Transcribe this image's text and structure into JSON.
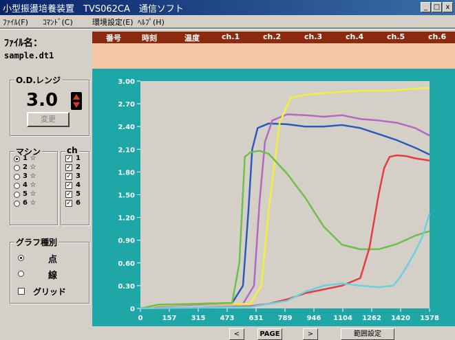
{
  "window": {
    "title": "小型振盪培養装置　TVS062CA　通信ソフト",
    "controls": {
      "minimize": "_",
      "maximize": "□",
      "close": "x"
    }
  },
  "menu": [
    "ﾌｧｲﾙ(F)",
    "ｺﾏﾝﾄﾞ(C)",
    "環境設定(E)",
    "ﾍﾙﾌﾟ(H)"
  ],
  "file": {
    "label": "ﾌｧｲﾙ名：",
    "name": "sample.dt1"
  },
  "header": [
    "番号",
    "時刻",
    "温度",
    "ch.1",
    "ch.2",
    "ch.3",
    "ch.4",
    "ch.5",
    "ch.6"
  ],
  "od_range": {
    "label": "O.D.レンジ",
    "value": "3.0",
    "change_button": "変更"
  },
  "machine": {
    "label": "マシン",
    "items": [
      "1 ☆",
      "2 ☆",
      "3 ☆",
      "4 ☆",
      "5 ☆",
      "6 ☆"
    ],
    "selected": 0
  },
  "channels": {
    "label": "ch",
    "items": [
      "1",
      "2",
      "3",
      "4",
      "5",
      "6"
    ]
  },
  "graph_type": {
    "label": "グラフ種別",
    "options": [
      "点",
      "線"
    ],
    "selected": 0,
    "grid_label": "グリッド"
  },
  "nav": {
    "prev": "<",
    "page": "PAGE",
    "next": ">",
    "settings": "範囲設定"
  },
  "chart_data": {
    "type": "line",
    "xlim": [
      0,
      1578
    ],
    "ylim": [
      0,
      3.0
    ],
    "xticks": [
      "0",
      "157",
      "315",
      "473",
      "631",
      "789",
      "946",
      "1104",
      "1262",
      "1420",
      "1578"
    ],
    "yticks": [
      "3.00",
      "2.70",
      "2.40",
      "2.10",
      "1.80",
      "1.50",
      "1.20",
      "0.90",
      "0.60",
      "0.30",
      "0"
    ],
    "grid": false,
    "background": "#d4d0c8",
    "frame_color": "#1fa6a6",
    "series": [
      {
        "color": "#2a5ab8",
        "x": [
          0,
          100,
          300,
          500,
          560,
          590,
          610,
          640,
          700,
          800,
          900,
          1000,
          1100,
          1200,
          1300,
          1400,
          1500,
          1578
        ],
        "y": [
          0,
          0.04,
          0.06,
          0.07,
          0.3,
          1.3,
          2.1,
          2.38,
          2.44,
          2.43,
          2.4,
          2.4,
          2.42,
          2.38,
          2.3,
          2.22,
          2.12,
          2.03
        ]
      },
      {
        "color": "#b268c4",
        "x": [
          0,
          100,
          300,
          560,
          620,
          650,
          680,
          720,
          800,
          900,
          1000,
          1100,
          1200,
          1300,
          1400,
          1500,
          1578
        ],
        "y": [
          0,
          0.03,
          0.05,
          0.06,
          0.3,
          1.4,
          2.2,
          2.48,
          2.56,
          2.55,
          2.53,
          2.55,
          2.5,
          2.48,
          2.45,
          2.38,
          2.28
        ]
      },
      {
        "color": "#f2f03a",
        "x": [
          0,
          100,
          300,
          600,
          660,
          700,
          760,
          820,
          900,
          1000,
          1100,
          1200,
          1300,
          1400,
          1500,
          1578
        ],
        "y": [
          0,
          0.04,
          0.06,
          0.06,
          0.3,
          1.3,
          2.45,
          2.78,
          2.82,
          2.84,
          2.86,
          2.87,
          2.87,
          2.88,
          2.9,
          2.91
        ]
      },
      {
        "color": "#6cc04a",
        "x": [
          0,
          100,
          300,
          500,
          540,
          570,
          600,
          650,
          700,
          800,
          900,
          1000,
          1100,
          1200,
          1300,
          1400,
          1500,
          1578
        ],
        "y": [
          0,
          0.05,
          0.06,
          0.07,
          0.6,
          2.0,
          2.06,
          2.08,
          2.04,
          1.78,
          1.46,
          1.08,
          0.84,
          0.78,
          0.78,
          0.85,
          0.96,
          1.02
        ]
      },
      {
        "color": "#e83a3a",
        "x": [
          0,
          300,
          600,
          700,
          800,
          900,
          1000,
          1100,
          1200,
          1250,
          1300,
          1330,
          1360,
          1400,
          1450,
          1500,
          1578
        ],
        "y": [
          0,
          0.01,
          0.03,
          0.06,
          0.12,
          0.2,
          0.25,
          0.3,
          0.4,
          0.8,
          1.5,
          1.85,
          2.0,
          2.02,
          2.01,
          1.98,
          1.95
        ]
      },
      {
        "color": "#6ad0e0",
        "x": [
          0,
          300,
          600,
          800,
          900,
          1000,
          1100,
          1200,
          1300,
          1380,
          1420,
          1460,
          1500,
          1540,
          1578
        ],
        "y": [
          0,
          0.01,
          0.02,
          0.1,
          0.22,
          0.3,
          0.33,
          0.3,
          0.28,
          0.3,
          0.42,
          0.58,
          0.75,
          0.95,
          1.25
        ]
      }
    ]
  }
}
